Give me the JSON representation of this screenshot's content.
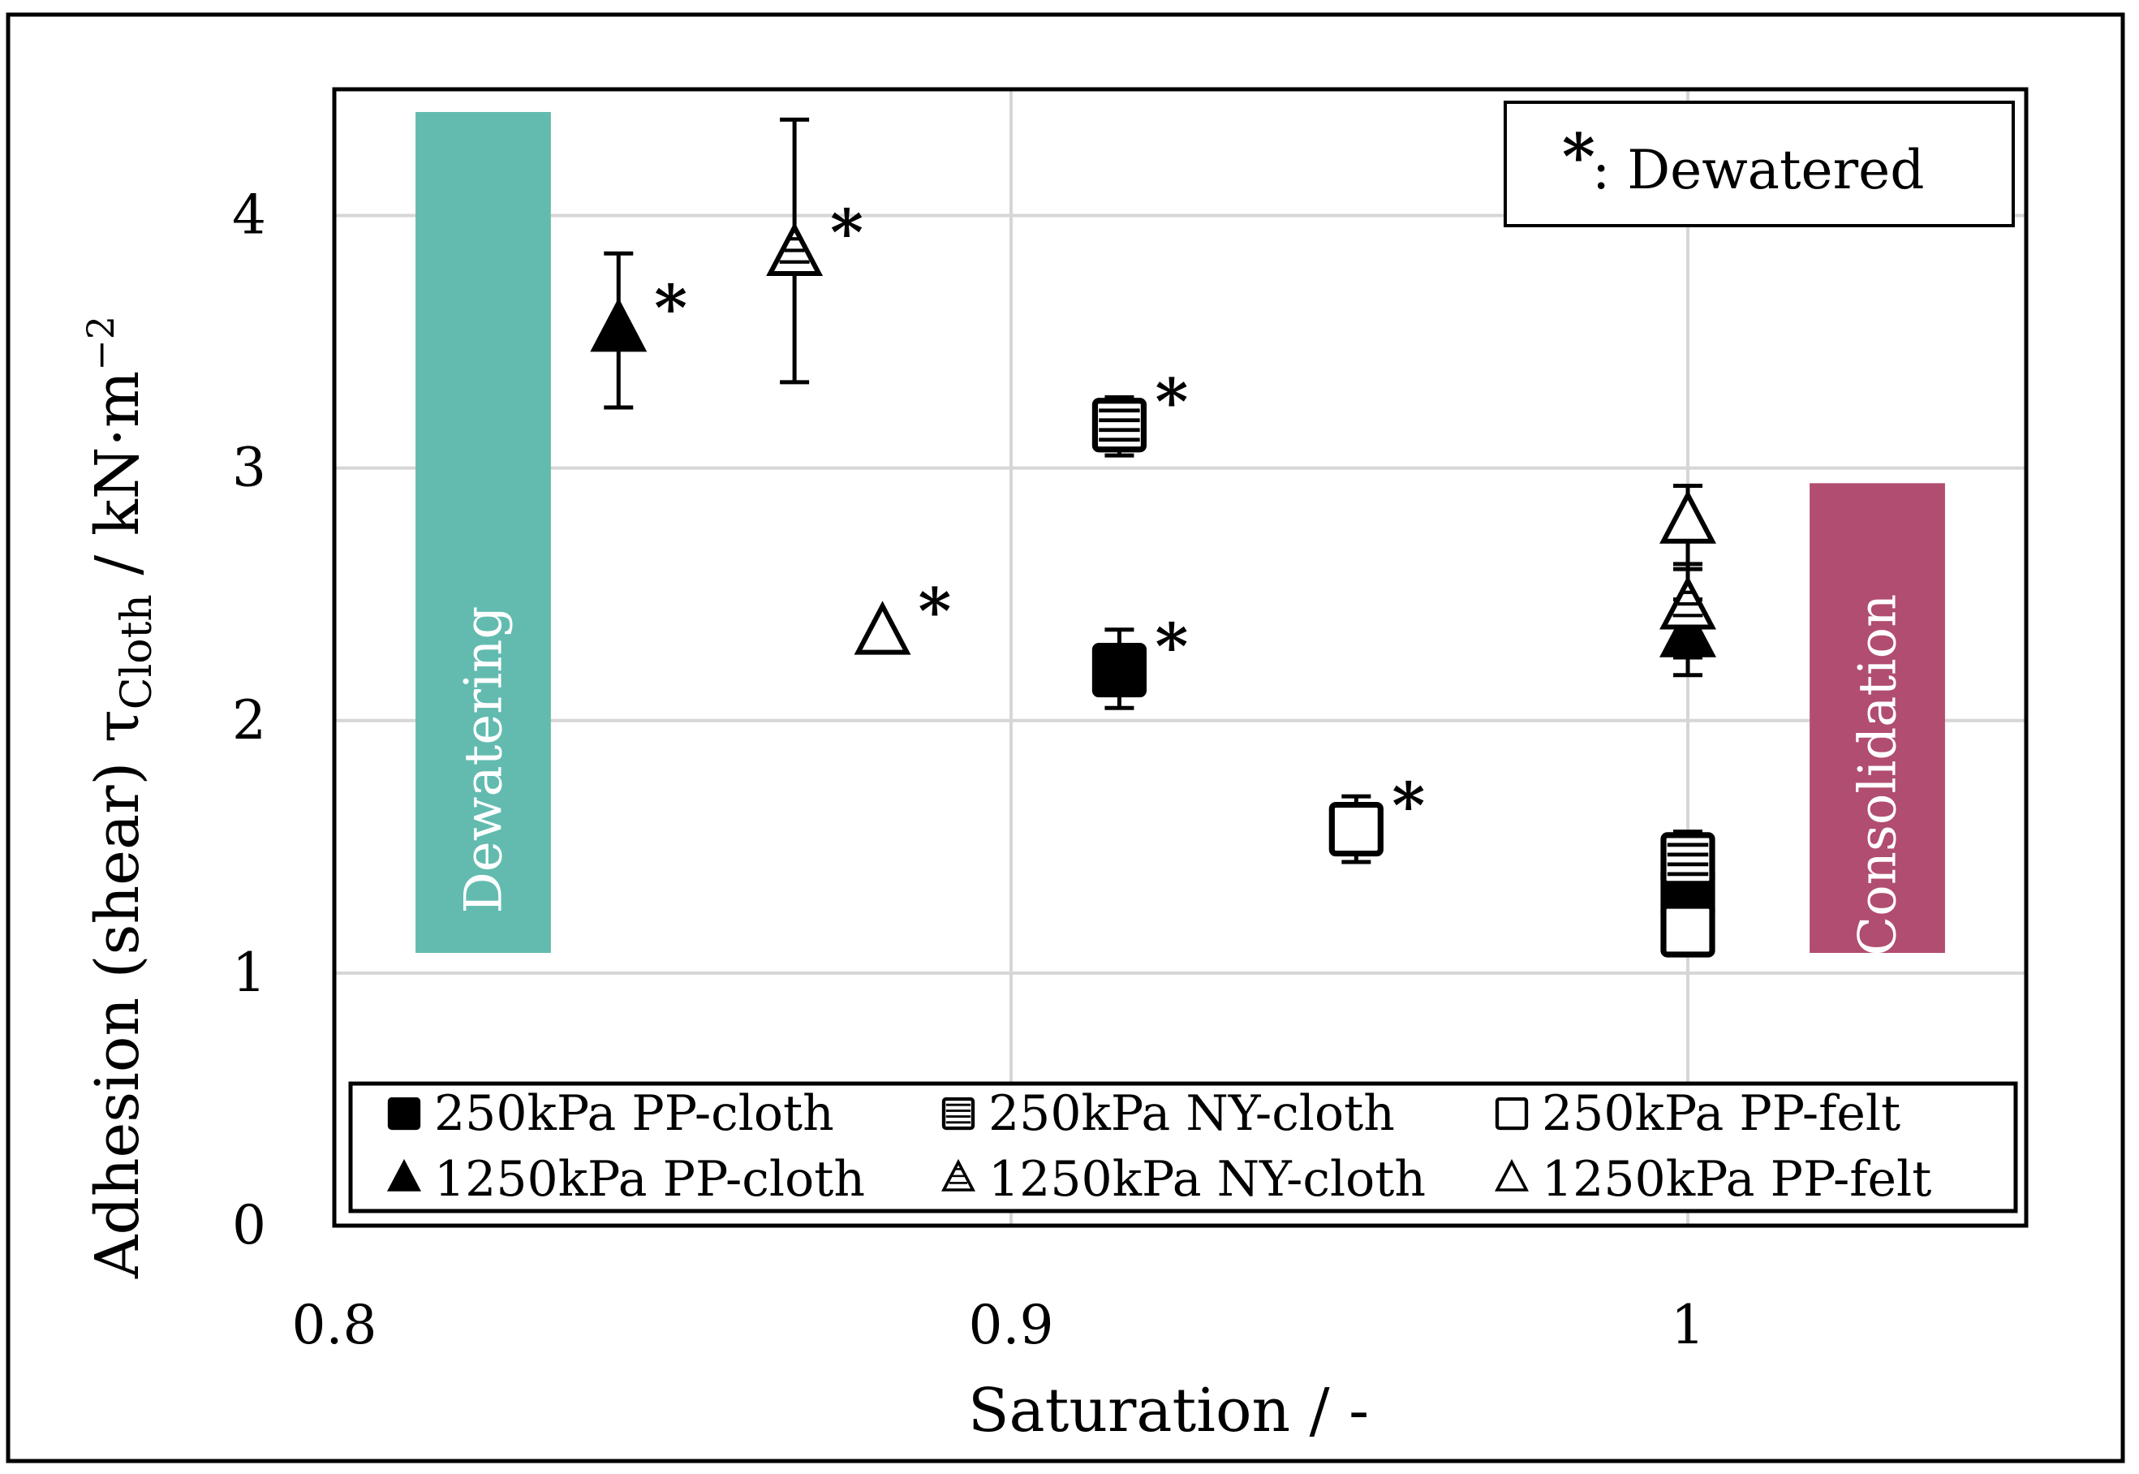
{
  "chart_data": {
    "type": "scatter",
    "title": "",
    "xlabel": "Saturation / -",
    "ylabel": {
      "main": "Adhesion (shear) τ",
      "subscript": "Cloth",
      "unit": " / kN·m",
      "exponent": "−2"
    },
    "xlim": [
      0.8,
      1.05
    ],
    "ylim": [
      0,
      4.5
    ],
    "x_ticks": [
      0.8,
      0.9,
      1.0
    ],
    "x_tick_labels": [
      "0.8",
      "0.9",
      "1"
    ],
    "y_ticks": [
      0,
      1,
      2,
      3,
      4
    ],
    "y_tick_labels": [
      "0",
      "1",
      "2",
      "3",
      "4"
    ],
    "grid": true,
    "series": [
      {
        "name": "250kPa PP-cloth",
        "marker": "square-filled",
        "points": [
          {
            "x": 0.916,
            "y": 2.2,
            "err_low": 2.05,
            "err_high": 2.36,
            "dewatered": true
          },
          {
            "x": 1.0,
            "y": 1.32,
            "err_low": 1.3,
            "err_high": 1.35,
            "dewatered": false
          }
        ]
      },
      {
        "name": "250kPa NY-cloth",
        "marker": "square-striped",
        "points": [
          {
            "x": 0.916,
            "y": 3.17,
            "err_low": 3.05,
            "err_high": 3.28,
            "dewatered": true
          },
          {
            "x": 1.0,
            "y": 1.45,
            "err_low": 1.35,
            "err_high": 1.56,
            "dewatered": false
          }
        ]
      },
      {
        "name": "250kPa PP-felt",
        "marker": "square-open",
        "points": [
          {
            "x": 0.951,
            "y": 1.57,
            "err_low": 1.44,
            "err_high": 1.7,
            "dewatered": true
          },
          {
            "x": 1.0,
            "y": 1.17,
            "err_low": 1.1,
            "err_high": 1.25,
            "dewatered": false
          }
        ]
      },
      {
        "name": "1250kPa PP-cloth",
        "marker": "triangle-filled",
        "points": [
          {
            "x": 0.842,
            "y": 3.54,
            "err_low": 3.24,
            "err_high": 3.85,
            "dewatered": true
          },
          {
            "x": 1.0,
            "y": 2.33,
            "err_low": 2.18,
            "err_high": 2.48,
            "dewatered": false
          }
        ]
      },
      {
        "name": "1250kPa NY-cloth",
        "marker": "triangle-striped",
        "points": [
          {
            "x": 0.868,
            "y": 3.84,
            "err_low": 3.34,
            "err_high": 4.38,
            "dewatered": true
          },
          {
            "x": 1.0,
            "y": 2.44,
            "err_low": 2.25,
            "err_high": 2.62,
            "dewatered": false
          }
        ]
      },
      {
        "name": "1250kPa PP-felt",
        "marker": "triangle-open",
        "points": [
          {
            "x": 0.881,
            "y": 2.34,
            "dewatered": true
          },
          {
            "x": 1.0,
            "y": 2.78,
            "err_low": 2.6,
            "err_high": 2.93,
            "dewatered": false
          }
        ]
      }
    ],
    "bands": [
      {
        "label": "Dewatering",
        "x_start": 0.812,
        "x_end": 0.832,
        "y_start": 1.08,
        "y_end": 4.41,
        "color": "#63bbb0"
      },
      {
        "label": "Consolidation",
        "x_start": 1.018,
        "x_end": 1.038,
        "y_start": 1.08,
        "y_end": 2.94,
        "color": "#b14d71"
      }
    ],
    "annotation": {
      "symbol": "*",
      "text": ": Dewatered",
      "placement": "top-right"
    },
    "legend": {
      "placement": "bottom",
      "columns": 3
    }
  }
}
